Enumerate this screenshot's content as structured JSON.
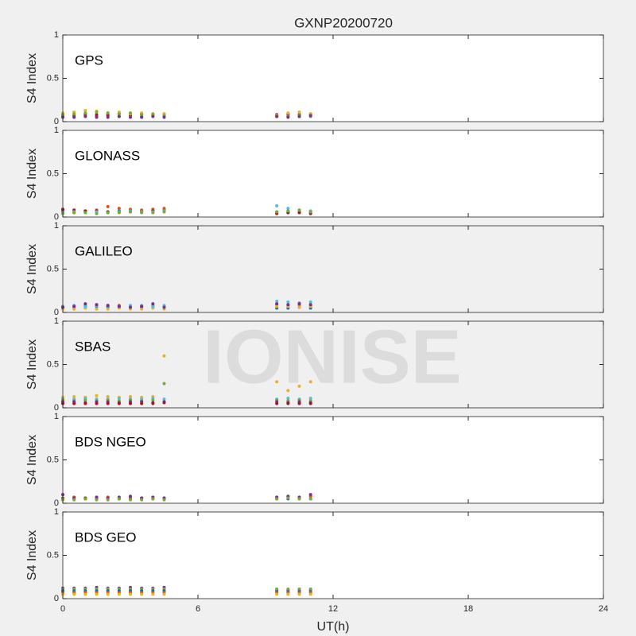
{
  "title": "GXNP20200720",
  "watermark": "IONISE",
  "chart_data": [
    {
      "type": "scatter",
      "label": "GPS",
      "ylabel": "S4 Index",
      "background": "#ffffff",
      "x": [
        0,
        0.5,
        1,
        1.5,
        2,
        2.5,
        3,
        3.5,
        4,
        4.5,
        9.5,
        10,
        10.5,
        11
      ],
      "series": [
        {
          "color": "#0072bd",
          "values": [
            0.07,
            0.06,
            0.07,
            0.06,
            0.07,
            0.06,
            0.07,
            0.06,
            0.07,
            0.06,
            0.06,
            0.07,
            0.06,
            0.07
          ]
        },
        {
          "color": "#a2142f",
          "values": [
            0.09,
            0.08,
            0.09,
            0.08,
            0.08,
            0.09,
            0.08,
            0.09,
            0.08,
            0.09,
            0.08,
            0.09,
            0.08,
            0.09
          ]
        },
        {
          "color": "#edb120",
          "values": [
            0.1,
            0.11,
            0.13,
            0.12,
            0.1,
            0.11,
            0.09,
            0.1,
            0.08,
            0.09,
            0.07,
            0.1,
            0.11,
            0.09
          ]
        },
        {
          "color": "#77ac30",
          "values": [
            0.08,
            0.09,
            0.1,
            0.11,
            0.1,
            0.09,
            0.1,
            0.08,
            0.09,
            0.07,
            0.06,
            0.06,
            0.07,
            0.06
          ]
        },
        {
          "color": "#7e2f8e",
          "values": [
            0.05,
            0.05,
            0.06,
            0.05,
            0.05,
            0.06,
            0.05,
            0.05,
            0.06,
            0.05,
            0.06,
            0.05,
            0.06,
            0.07
          ]
        }
      ],
      "xlim": [
        0,
        24
      ],
      "ylim": [
        0,
        1
      ],
      "xticks": [
        0,
        6,
        12,
        18,
        24
      ],
      "yticks": [
        0,
        0.5,
        1
      ]
    },
    {
      "type": "scatter",
      "label": "GLONASS",
      "ylabel": "S4 Index",
      "background": "#ffffff",
      "x": [
        0,
        0.5,
        1,
        1.5,
        2,
        2.5,
        3,
        3.5,
        4,
        4.5,
        9.5,
        10,
        10.5,
        11
      ],
      "series": [
        {
          "color": "#0072bd",
          "values": [
            0.07,
            0.06,
            0.07,
            0.06,
            0.06,
            0.07,
            0.06,
            0.07,
            0.07,
            0.08,
            0.05,
            0.05,
            0.06,
            0.05
          ]
        },
        {
          "color": "#d95319",
          "values": [
            0.06,
            0.05,
            0.06,
            0.08,
            0.12,
            0.1,
            0.09,
            0.08,
            0.09,
            0.1,
            0.06,
            0.07,
            0.06,
            0.07
          ]
        },
        {
          "color": "#a2142f",
          "values": [
            0.09,
            0.08,
            0.07,
            0.07,
            0.06,
            0.06,
            0.07,
            0.06,
            0.07,
            0.07,
            0.04,
            0.05,
            0.05,
            0.04
          ]
        },
        {
          "color": "#4dbeee",
          "values": [
            0.05,
            0.06,
            0.05,
            0.06,
            0.05,
            0.06,
            0.07,
            0.06,
            0.06,
            0.07,
            0.13,
            0.1,
            0.08,
            0.07
          ]
        },
        {
          "color": "#77ac30",
          "values": [
            0.04,
            0.05,
            0.05,
            0.04,
            0.05,
            0.05,
            0.06,
            0.05,
            0.05,
            0.06,
            0.06,
            0.07,
            0.08,
            0.06
          ]
        }
      ],
      "xlim": [
        0,
        24
      ],
      "ylim": [
        0,
        1
      ],
      "xticks": [
        0,
        6,
        12,
        18,
        24
      ],
      "yticks": [
        0,
        0.5,
        1
      ]
    },
    {
      "type": "scatter",
      "label": "GALILEO",
      "ylabel": "S4 Index",
      "background": "#f0f0f0",
      "x": [
        0,
        0.5,
        1,
        1.5,
        2,
        2.5,
        3,
        3.5,
        4,
        4.5,
        9.5,
        10,
        10.5,
        11
      ],
      "series": [
        {
          "color": "#0072bd",
          "values": [
            0.06,
            0.06,
            0.06,
            0.07,
            0.06,
            0.06,
            0.07,
            0.06,
            0.06,
            0.07,
            0.05,
            0.05,
            0.06,
            0.05
          ]
        },
        {
          "color": "#d95319",
          "values": [
            0.07,
            0.07,
            0.08,
            0.09,
            0.08,
            0.08,
            0.07,
            0.07,
            0.08,
            0.07,
            0.09,
            0.08,
            0.09,
            0.08
          ]
        },
        {
          "color": "#edb120",
          "values": [
            0.04,
            0.04,
            0.05,
            0.04,
            0.04,
            0.05,
            0.04,
            0.04,
            0.05,
            0.04,
            0.07,
            0.07,
            0.06,
            0.07
          ]
        },
        {
          "color": "#4dbeee",
          "values": [
            0.07,
            0.08,
            0.07,
            0.08,
            0.08,
            0.07,
            0.08,
            0.08,
            0.07,
            0.08,
            0.13,
            0.12,
            0.11,
            0.12
          ]
        },
        {
          "color": "#7e2f8e",
          "values": [
            0.06,
            0.07,
            0.1,
            0.09,
            0.08,
            0.07,
            0.06,
            0.07,
            0.1,
            0.06,
            0.1,
            0.09,
            0.1,
            0.09
          ]
        }
      ],
      "xlim": [
        0,
        24
      ],
      "ylim": [
        0,
        1
      ],
      "xticks": [
        0,
        6,
        12,
        18,
        24
      ],
      "yticks": [
        0,
        0.5,
        1
      ]
    },
    {
      "type": "scatter",
      "label": "SBAS",
      "ylabel": "S4 Index",
      "background": "#f0f0f0",
      "x": [
        0,
        0.5,
        1,
        1.5,
        2,
        2.5,
        3,
        3.5,
        4,
        4.5,
        9.5,
        10,
        10.5,
        11
      ],
      "series": [
        {
          "color": "#edb120",
          "values": [
            0.12,
            0.13,
            0.12,
            0.14,
            0.13,
            0.12,
            0.13,
            0.12,
            0.13,
            0.6,
            0.3,
            0.2,
            0.25,
            0.3
          ]
        },
        {
          "color": "#4dbeee",
          "values": [
            0.1,
            0.1,
            0.11,
            0.1,
            0.1,
            0.11,
            0.1,
            0.1,
            0.11,
            0.1,
            0.1,
            0.11,
            0.1,
            0.11
          ]
        },
        {
          "color": "#77ac30",
          "values": [
            0.09,
            0.08,
            0.09,
            0.08,
            0.09,
            0.08,
            0.09,
            0.08,
            0.09,
            0.28,
            0.09,
            0.08,
            0.09,
            0.08
          ]
        },
        {
          "color": "#7e2f8e",
          "values": [
            0.07,
            0.07,
            0.06,
            0.07,
            0.07,
            0.06,
            0.07,
            0.07,
            0.06,
            0.07,
            0.07,
            0.06,
            0.07,
            0.06
          ]
        },
        {
          "color": "#a2142f",
          "values": [
            0.05,
            0.05,
            0.05,
            0.05,
            0.05,
            0.05,
            0.05,
            0.05,
            0.05,
            0.06,
            0.05,
            0.05,
            0.05,
            0.05
          ]
        }
      ],
      "xlim": [
        0,
        24
      ],
      "ylim": [
        0,
        1
      ],
      "xticks": [
        0,
        6,
        12,
        18,
        24
      ],
      "yticks": [
        0,
        0.5,
        1
      ]
    },
    {
      "type": "scatter",
      "label": "BDS NGEO",
      "ylabel": "S4 Index",
      "background": "#ffffff",
      "x": [
        0,
        0.5,
        1,
        1.5,
        2,
        2.5,
        3,
        3.5,
        4,
        4.5,
        9.5,
        10,
        10.5,
        11
      ],
      "series": [
        {
          "color": "#0072bd",
          "values": [
            0.06,
            0.05,
            0.05,
            0.05,
            0.06,
            0.05,
            0.05,
            0.06,
            0.05,
            0.05,
            0.05,
            0.05,
            0.06,
            0.05
          ]
        },
        {
          "color": "#d95319",
          "values": [
            0.05,
            0.07,
            0.06,
            0.06,
            0.07,
            0.06,
            0.07,
            0.06,
            0.06,
            0.06,
            0.06,
            0.07,
            0.06,
            0.08
          ]
        },
        {
          "color": "#7e2f8e",
          "values": [
            0.1,
            0.06,
            0.06,
            0.07,
            0.06,
            0.07,
            0.08,
            0.06,
            0.07,
            0.06,
            0.07,
            0.08,
            0.07,
            0.1
          ]
        },
        {
          "color": "#77ac30",
          "values": [
            0.04,
            0.04,
            0.05,
            0.04,
            0.04,
            0.05,
            0.04,
            0.04,
            0.05,
            0.04,
            0.05,
            0.06,
            0.05,
            0.05
          ]
        }
      ],
      "xlim": [
        0,
        24
      ],
      "ylim": [
        0,
        1
      ],
      "xticks": [
        0,
        6,
        12,
        18,
        24
      ],
      "yticks": [
        0,
        0.5,
        1
      ]
    },
    {
      "type": "scatter",
      "label": "BDS GEO",
      "ylabel": "S4 Index",
      "xlabel": "UT(h)",
      "background": "#ffffff",
      "x": [
        0,
        0.5,
        1,
        1.5,
        2,
        2.5,
        3,
        3.5,
        4,
        4.5,
        9.5,
        10,
        10.5,
        11
      ],
      "series": [
        {
          "color": "#7e2f8e",
          "values": [
            0.12,
            0.12,
            0.12,
            0.13,
            0.12,
            0.12,
            0.13,
            0.12,
            0.12,
            0.13,
            0.1,
            0.1,
            0.1,
            0.1
          ]
        },
        {
          "color": "#77ac30",
          "values": [
            0.11,
            0.11,
            0.11,
            0.11,
            0.11,
            0.11,
            0.11,
            0.11,
            0.11,
            0.11,
            0.11,
            0.11,
            0.11,
            0.11
          ]
        },
        {
          "color": "#0072bd",
          "values": [
            0.09,
            0.09,
            0.09,
            0.09,
            0.09,
            0.09,
            0.09,
            0.09,
            0.09,
            0.09,
            0.08,
            0.08,
            0.08,
            0.08
          ]
        },
        {
          "color": "#d95319",
          "values": [
            0.07,
            0.07,
            0.07,
            0.07,
            0.07,
            0.07,
            0.07,
            0.07,
            0.07,
            0.07,
            0.07,
            0.07,
            0.07,
            0.07
          ]
        },
        {
          "color": "#edb120",
          "values": [
            0.05,
            0.05,
            0.05,
            0.05,
            0.05,
            0.05,
            0.05,
            0.05,
            0.05,
            0.05,
            0.05,
            0.05,
            0.05,
            0.05
          ]
        }
      ],
      "xlim": [
        0,
        24
      ],
      "ylim": [
        0,
        1
      ],
      "xticks": [
        0,
        6,
        12,
        18,
        24
      ],
      "yticks": [
        0,
        0.5,
        1
      ]
    }
  ]
}
